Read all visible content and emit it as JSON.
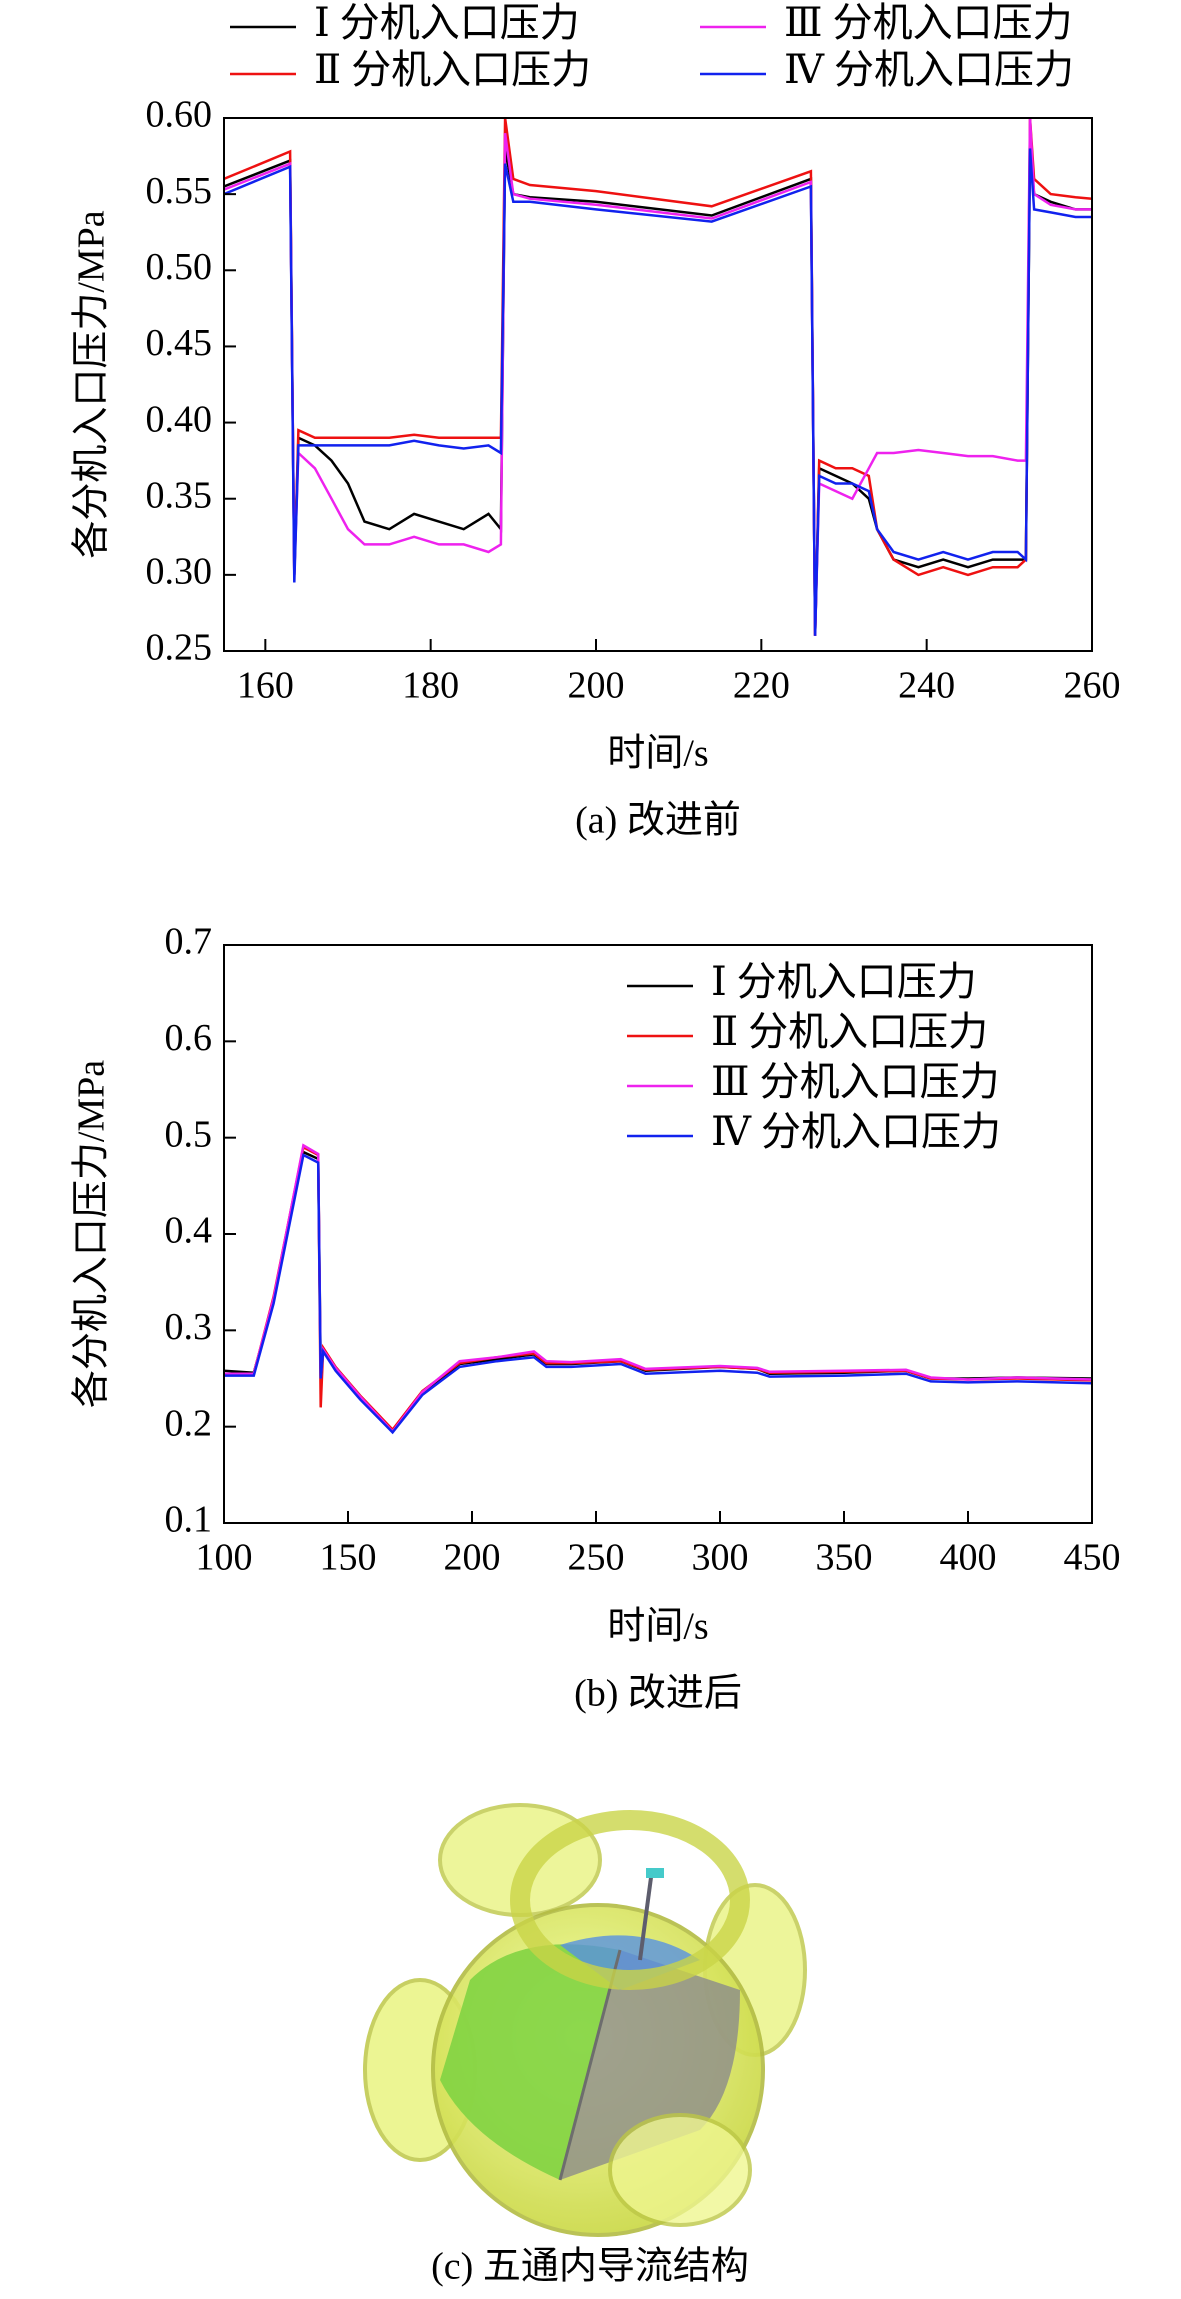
{
  "chart_data": [
    {
      "type": "line",
      "caption": "(a) 改进前",
      "x_label": "时间/s",
      "y_label": "各分机入口压力/MPa",
      "legend": "top",
      "x": [
        155,
        163,
        163.5,
        164,
        166,
        168,
        170,
        172,
        175,
        178,
        181,
        184,
        187,
        188.5,
        189,
        190,
        192,
        200,
        214,
        226,
        226.5,
        227,
        229,
        231,
        233,
        234,
        236,
        239,
        242,
        245,
        248,
        251,
        252,
        252.5,
        253,
        255,
        258,
        260
      ],
      "series": [
        {
          "name": "Ⅰ 分机入口压力",
          "color": "#000000",
          "values": [
            0.555,
            0.572,
            0.3,
            0.39,
            0.385,
            0.375,
            0.36,
            0.335,
            0.33,
            0.34,
            0.335,
            0.33,
            0.34,
            0.33,
            0.58,
            0.55,
            0.548,
            0.545,
            0.536,
            0.56,
            0.26,
            0.37,
            0.365,
            0.36,
            0.35,
            0.33,
            0.31,
            0.305,
            0.31,
            0.305,
            0.31,
            0.31,
            0.31,
            0.58,
            0.55,
            0.545,
            0.54,
            0.54
          ]
        },
        {
          "name": "Ⅱ 分机入口压力",
          "color": "#ee1111",
          "values": [
            0.56,
            0.578,
            0.3,
            0.395,
            0.39,
            0.39,
            0.39,
            0.39,
            0.39,
            0.392,
            0.39,
            0.39,
            0.39,
            0.39,
            0.6,
            0.56,
            0.556,
            0.552,
            0.542,
            0.565,
            0.26,
            0.375,
            0.37,
            0.37,
            0.365,
            0.33,
            0.31,
            0.3,
            0.305,
            0.3,
            0.305,
            0.305,
            0.31,
            0.6,
            0.56,
            0.55,
            0.548,
            0.547
          ]
        },
        {
          "name": "Ⅲ 分机入口压力",
          "color": "#ee22ee",
          "values": [
            0.553,
            0.57,
            0.3,
            0.38,
            0.37,
            0.35,
            0.33,
            0.32,
            0.32,
            0.325,
            0.32,
            0.32,
            0.315,
            0.32,
            0.59,
            0.55,
            0.547,
            0.543,
            0.534,
            0.558,
            0.26,
            0.36,
            0.355,
            0.35,
            0.37,
            0.38,
            0.38,
            0.382,
            0.38,
            0.378,
            0.378,
            0.375,
            0.375,
            0.6,
            0.55,
            0.543,
            0.54,
            0.54
          ]
        },
        {
          "name": "Ⅳ 分机入口压力",
          "color": "#1122ee",
          "values": [
            0.55,
            0.568,
            0.295,
            0.385,
            0.385,
            0.385,
            0.385,
            0.385,
            0.385,
            0.388,
            0.385,
            0.383,
            0.385,
            0.38,
            0.57,
            0.545,
            0.545,
            0.54,
            0.532,
            0.555,
            0.26,
            0.365,
            0.36,
            0.36,
            0.355,
            0.33,
            0.315,
            0.31,
            0.315,
            0.31,
            0.315,
            0.315,
            0.31,
            0.58,
            0.54,
            0.538,
            0.535,
            0.535
          ]
        }
      ],
      "xlim": [
        155,
        260
      ],
      "xticks": [
        160,
        180,
        200,
        220,
        240,
        260
      ],
      "ylim": [
        0.25,
        0.6
      ],
      "yticks": [
        0.25,
        {
          "value": 0.3,
          "label": "0.30"
        },
        0.35,
        {
          "value": 0.4,
          "label": "0.40"
        },
        0.45,
        {
          "value": 0.5,
          "label": "0.50"
        },
        0.55,
        {
          "value": 0.6,
          "label": "0.60"
        }
      ],
      "grid": false
    },
    {
      "type": "line",
      "caption": "(b) 改进后",
      "x_label": "时间/s",
      "y_label": "各分机入口压力/MPa",
      "legend": "upper right",
      "x": [
        100,
        112,
        120,
        132,
        138,
        139,
        140,
        145,
        155,
        168,
        180,
        195,
        210,
        225,
        230,
        240,
        260,
        270,
        300,
        315,
        320,
        350,
        375,
        385,
        400,
        420,
        450
      ],
      "series": [
        {
          "name": "Ⅰ 分机入口压力",
          "color": "#000000",
          "values": [
            0.258,
            0.256,
            0.33,
            0.485,
            0.478,
            0.26,
            0.28,
            0.26,
            0.23,
            0.196,
            0.235,
            0.265,
            0.27,
            0.275,
            0.265,
            0.265,
            0.268,
            0.258,
            0.262,
            0.26,
            0.255,
            0.256,
            0.258,
            0.25,
            0.25,
            0.251,
            0.25
          ]
        },
        {
          "name": "Ⅱ 分机入口压力",
          "color": "#ee1111",
          "values": [
            0.255,
            0.255,
            0.335,
            0.49,
            0.482,
            0.22,
            0.282,
            0.262,
            0.232,
            0.197,
            0.237,
            0.266,
            0.272,
            0.276,
            0.266,
            0.266,
            0.268,
            0.259,
            0.262,
            0.26,
            0.256,
            0.257,
            0.258,
            0.25,
            0.249,
            0.25,
            0.248
          ]
        },
        {
          "name": "Ⅲ 分机入口压力",
          "color": "#ee22ee",
          "values": [
            0.255,
            0.255,
            0.333,
            0.492,
            0.483,
            0.25,
            0.28,
            0.261,
            0.231,
            0.195,
            0.236,
            0.268,
            0.272,
            0.278,
            0.268,
            0.267,
            0.27,
            0.26,
            0.263,
            0.261,
            0.257,
            0.258,
            0.259,
            0.251,
            0.249,
            0.251,
            0.249
          ]
        },
        {
          "name": "Ⅳ 分机入口压力",
          "color": "#1122ee",
          "values": [
            0.253,
            0.253,
            0.328,
            0.482,
            0.474,
            0.25,
            0.278,
            0.258,
            0.228,
            0.194,
            0.233,
            0.262,
            0.268,
            0.272,
            0.262,
            0.262,
            0.265,
            0.255,
            0.258,
            0.256,
            0.252,
            0.253,
            0.255,
            0.247,
            0.246,
            0.247,
            0.245
          ]
        }
      ],
      "xlim": [
        100,
        450
      ],
      "xticks": [
        100,
        150,
        200,
        250,
        300,
        350,
        400,
        450
      ],
      "ylim": [
        0.1,
        0.7
      ],
      "yticks": [
        0.1,
        0.2,
        0.3,
        0.4,
        0.5,
        0.6,
        0.7
      ],
      "grid": false
    }
  ],
  "figure_c": {
    "caption": "(c) 五通内导流结构"
  }
}
